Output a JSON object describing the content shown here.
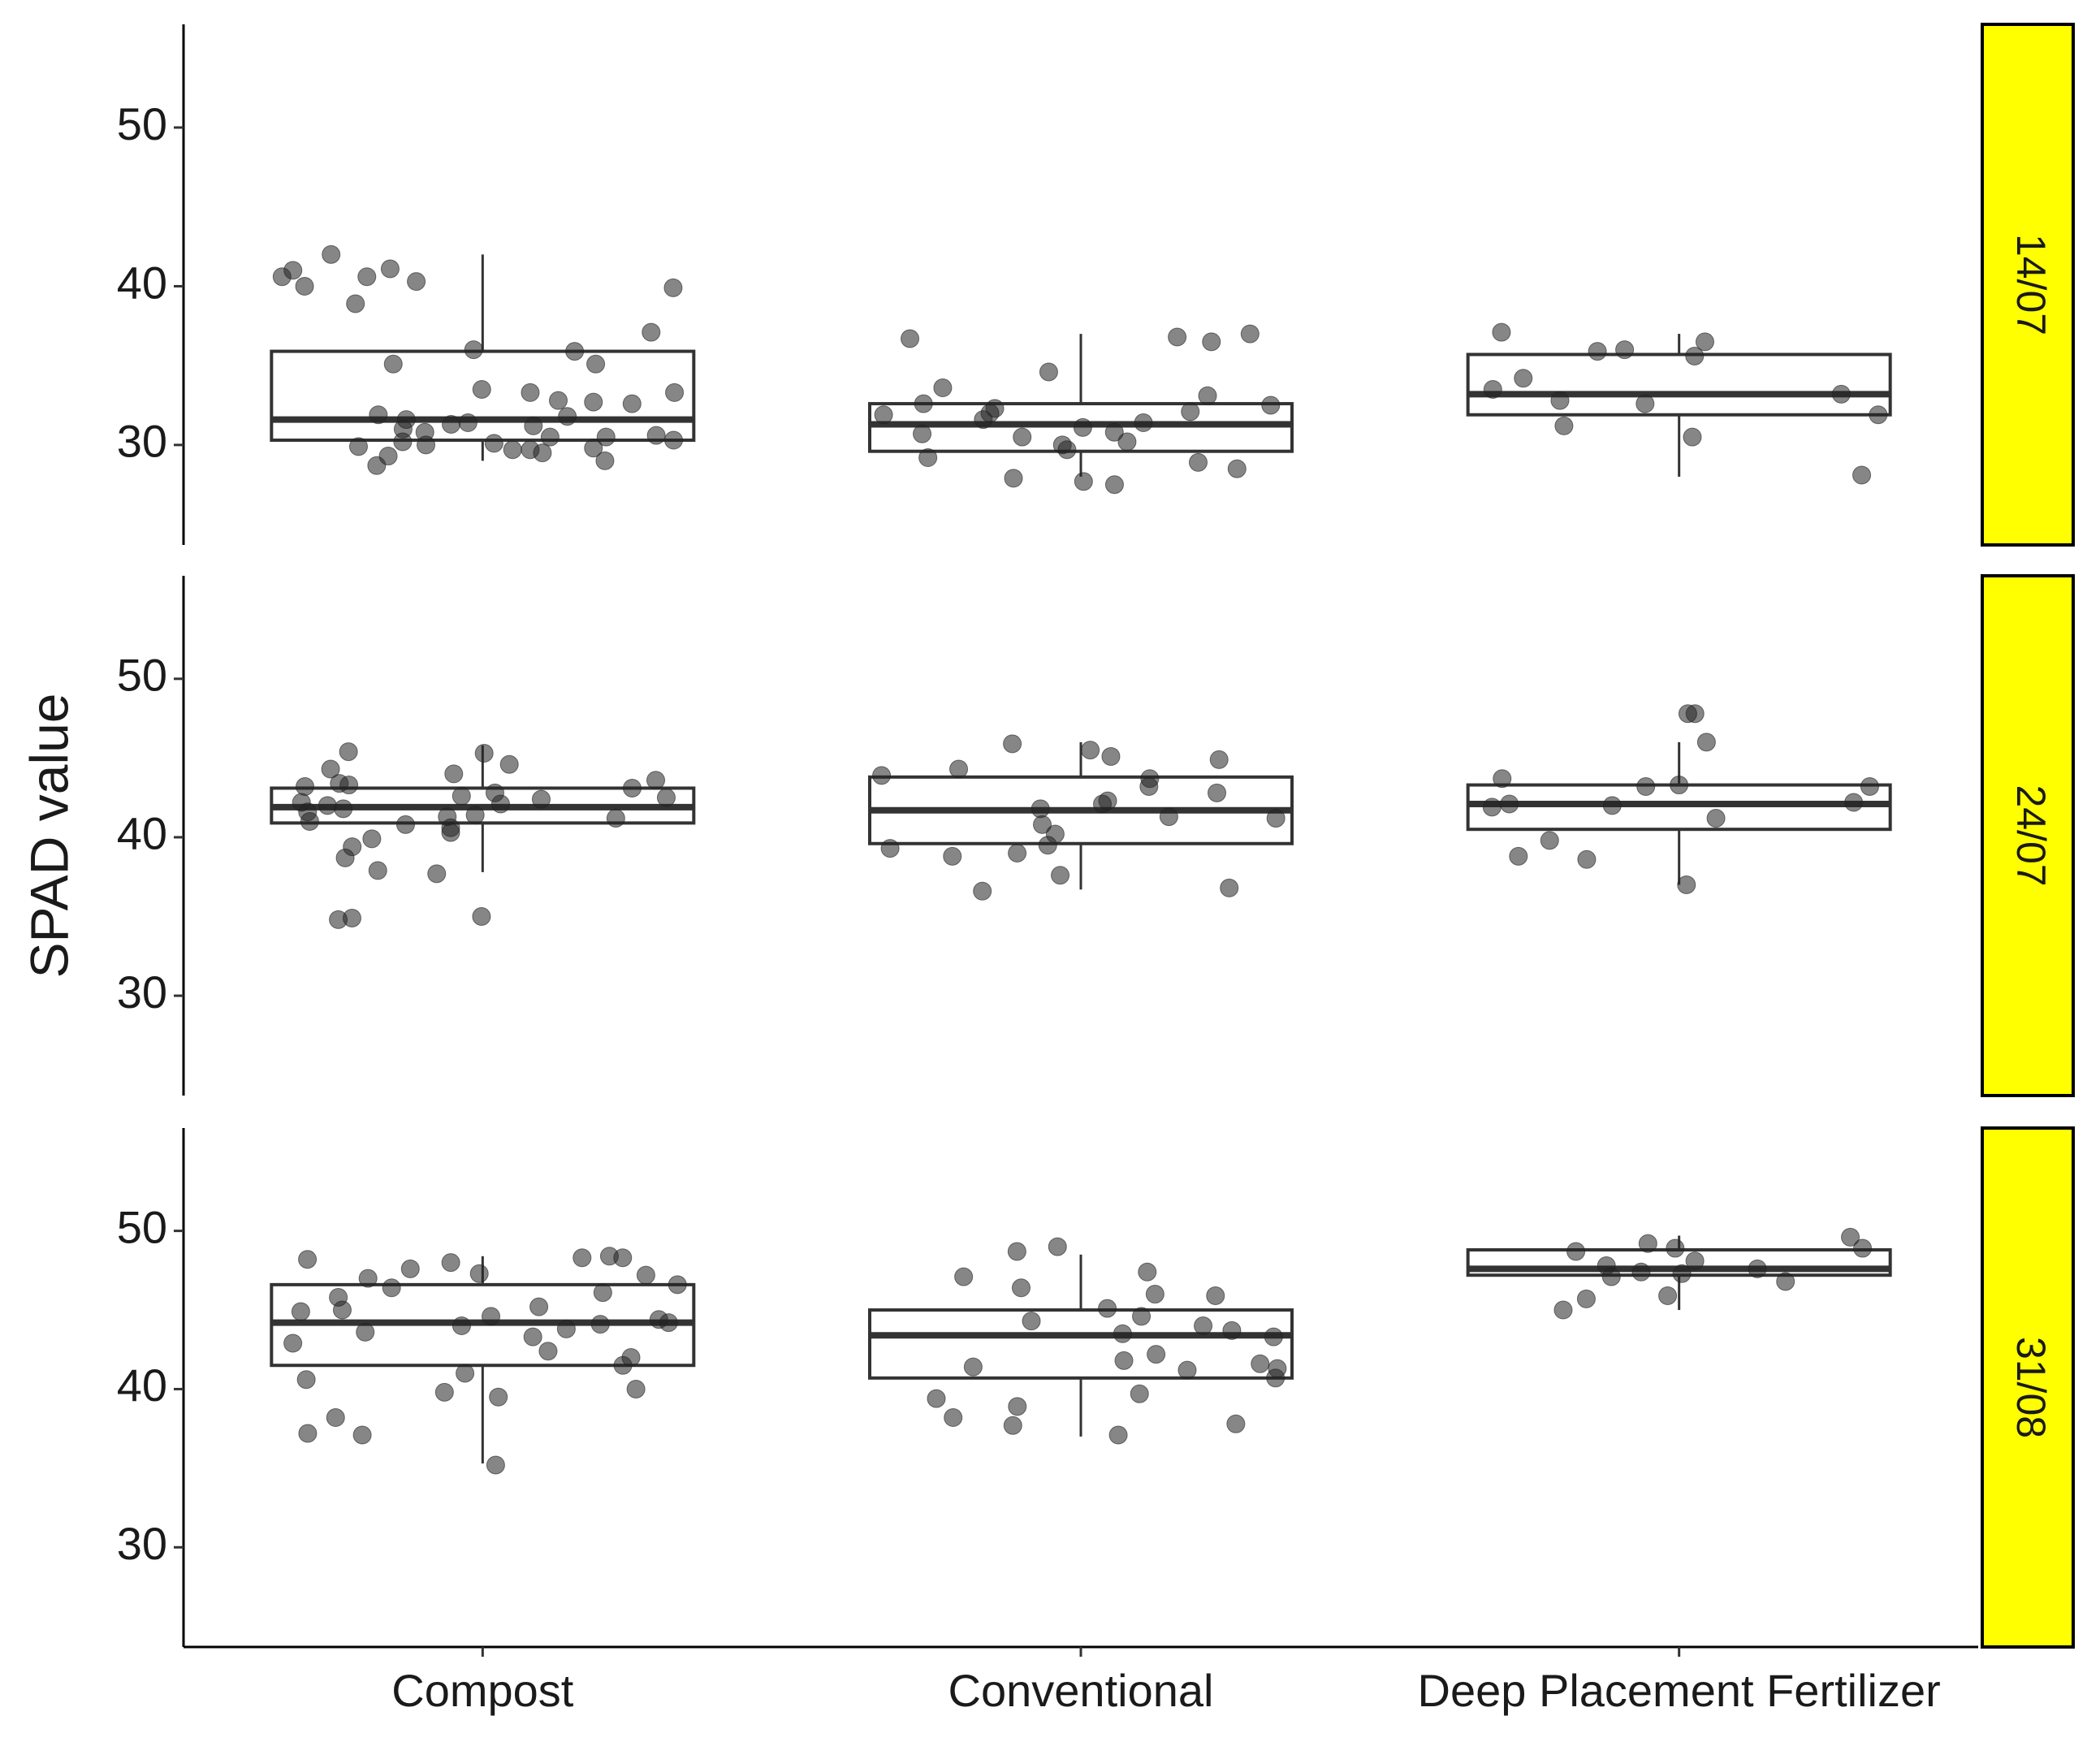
{
  "chart_data": {
    "type": "box",
    "y_label": "SPAD value",
    "categories": [
      "Compost",
      "Conventional",
      "Deep Placement Fertilizer"
    ],
    "ylim": [
      23.7,
      56.5
    ],
    "yticks": [
      30,
      40,
      50
    ],
    "strip_color": "#ffff00",
    "box_color": "#333333",
    "point_color": "#222222",
    "facets": [
      {
        "label": "14/07",
        "boxes": [
          {
            "min": 29,
            "q1": 30.3,
            "median": 31.6,
            "q3": 35.9,
            "max": 42
          },
          {
            "min": 28,
            "q1": 29.6,
            "median": 31.3,
            "q3": 32.6,
            "max": 37
          },
          {
            "min": 28,
            "q1": 31.9,
            "median": 33.2,
            "q3": 35.7,
            "max": 37
          }
        ],
        "points": [
          [
            40.6,
            38.9,
            41,
            41.1,
            40.6,
            40,
            39.9,
            42,
            40.3,
            37.1,
            35.9,
            35.1,
            36,
            35.1,
            33.5,
            33.3,
            33.3,
            32.8,
            32.7,
            32.6,
            31.9,
            31.8,
            31.6,
            31.4,
            31.3,
            31,
            30.8,
            30.6,
            30.5,
            30.3,
            30.2,
            30,
            29.8,
            29.7,
            29.7,
            29.5,
            29.3,
            29,
            28.7,
            30.5,
            31.2,
            29.9,
            30.1
          ],
          [
            37,
            36.8,
            36.7,
            34.6,
            36.5,
            33.6,
            33.1,
            32.6,
            32.5,
            32.3,
            32.1,
            31.9,
            31.6,
            31.4,
            31.1,
            30.7,
            30.5,
            30.2,
            30,
            29.7,
            29.2,
            28.9,
            28.5,
            27.9,
            27.7,
            27.5,
            32,
            30.8
          ],
          [
            37.1,
            36.5,
            36,
            35.9,
            35.6,
            34.2,
            33.5,
            33.2,
            32.8,
            32.6,
            31.9,
            31.2,
            30.5,
            28.1
          ]
        ]
      },
      {
        "label": "24/07",
        "boxes": [
          {
            "min": 37.8,
            "q1": 40.9,
            "median": 41.9,
            "q3": 43.1,
            "max": 45.8
          },
          {
            "min": 36.7,
            "q1": 39.6,
            "median": 41.7,
            "q3": 43.8,
            "max": 46
          },
          {
            "min": 37,
            "q1": 40.5,
            "median": 42.1,
            "q3": 43.3,
            "max": 46
          }
        ],
        "points": [
          [
            45.4,
            45.3,
            44.6,
            44.3,
            44,
            43.6,
            43.4,
            43.2,
            43.1,
            42.8,
            42.6,
            42.4,
            42.2,
            42,
            41.8,
            41.6,
            41.4,
            41.2,
            41,
            40.8,
            40.6,
            40.3,
            39.9,
            39.4,
            38.7,
            37.9,
            37.7,
            35,
            34.9,
            34.8,
            42.5,
            41.3,
            43.3,
            42.1
          ],
          [
            45.9,
            45.5,
            45.1,
            44.9,
            43.9,
            43.7,
            43.2,
            42.8,
            42.1,
            41.8,
            41.3,
            41.2,
            40.8,
            40.2,
            39.5,
            39.3,
            39,
            38.8,
            37.6,
            36.8,
            36.6,
            42.3,
            44.3
          ],
          [
            47.8,
            47.8,
            46,
            43.7,
            43.3,
            43.2,
            43.2,
            42.2,
            42.1,
            42,
            41.9,
            41.2,
            39.8,
            38.8,
            38.6,
            37
          ]
        ]
      },
      {
        "label": "31/08",
        "boxes": [
          {
            "min": 35.3,
            "q1": 41.5,
            "median": 44.2,
            "q3": 46.6,
            "max": 48.4
          },
          {
            "min": 37,
            "q1": 40.7,
            "median": 43.4,
            "q3": 45,
            "max": 48.5
          },
          {
            "min": 45,
            "q1": 47.2,
            "median": 47.6,
            "q3": 48.8,
            "max": 49.7
          }
        ],
        "points": [
          [
            48.4,
            48.3,
            48.3,
            48.2,
            48,
            47.6,
            47.3,
            47.2,
            47,
            46.6,
            46.4,
            46.1,
            45.8,
            45.2,
            44.9,
            44.6,
            44.4,
            44.2,
            44,
            43.8,
            43.6,
            43.3,
            42.9,
            42.4,
            42,
            41.5,
            41,
            40.6,
            40,
            39.8,
            39.5,
            38.2,
            37.2,
            37.1,
            35.2,
            45,
            44.1
          ],
          [
            49,
            48.7,
            47.4,
            47.1,
            46.4,
            46,
            45.9,
            45.1,
            44.6,
            44.3,
            44,
            43.7,
            43.5,
            43.3,
            42.2,
            41.6,
            41.4,
            41.3,
            41.2,
            40.7,
            39.7,
            39.4,
            38.9,
            38.2,
            37.8,
            37.7,
            37.1,
            41.8
          ],
          [
            49.6,
            49.2,
            48.9,
            48.9,
            48.7,
            48.1,
            47.8,
            47.6,
            47.3,
            47.1,
            46.8,
            45.9,
            45.7,
            45,
            47.4
          ]
        ]
      }
    ]
  }
}
